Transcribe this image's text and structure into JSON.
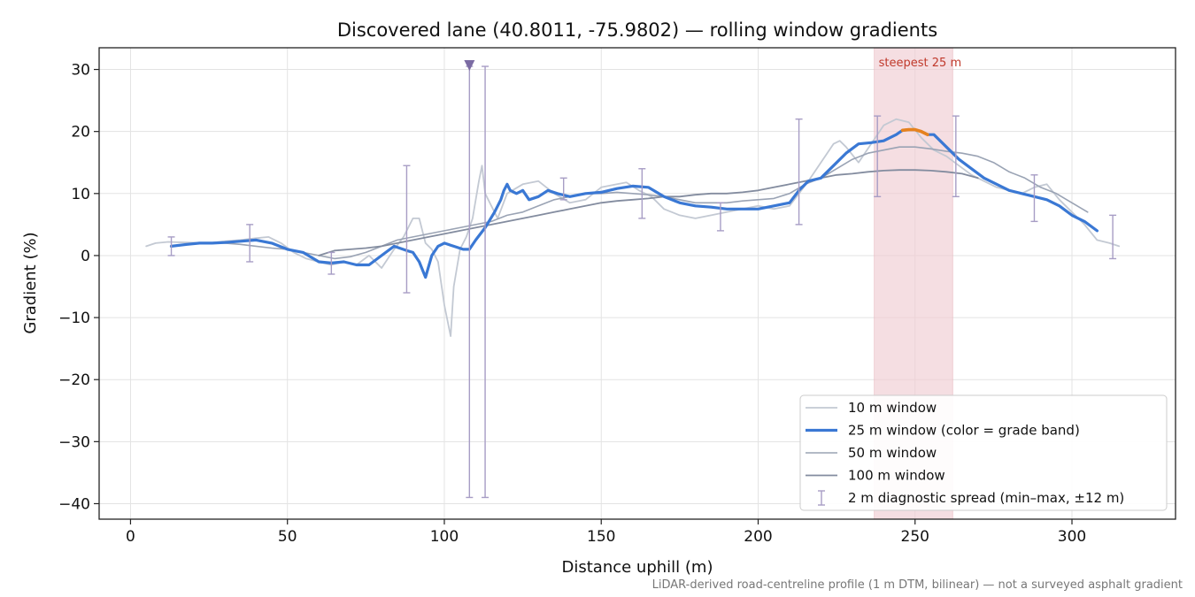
{
  "chart_data": {
    "type": "line",
    "title": "Discovered lane (40.8011, -75.9802) — rolling window gradients",
    "xlabel": "Distance uphill (m)",
    "ylabel": "Gradient (%)",
    "xlim": [
      -10,
      333
    ],
    "ylim": [
      -42.5,
      33.5
    ],
    "xticks": [
      0,
      50,
      100,
      150,
      200,
      250,
      300
    ],
    "yticks": [
      30,
      20,
      10,
      0,
      -10,
      -20,
      -30,
      -40
    ],
    "grid": true,
    "legend_position": "lower-right",
    "footnote": "LiDAR-derived road-centreline profile (1 m DTM, bilinear) — not a surveyed asphalt gradient",
    "highlight": {
      "label": "steepest 25 m",
      "x_range": [
        237,
        262
      ],
      "color": "#f1cdd3"
    },
    "peak_marker": {
      "x": 108,
      "y": 30.5,
      "color": "#7b6ba3"
    },
    "series": [
      {
        "name": "10 m window",
        "color": "#c3c9d3",
        "x": [
          5,
          8,
          12,
          18,
          25,
          30,
          35,
          40,
          44,
          48,
          52,
          56,
          60,
          64,
          68,
          72,
          76,
          80,
          84,
          87,
          90,
          92,
          94,
          96,
          98,
          100,
          102,
          103,
          105,
          107,
          109,
          111,
          112,
          113,
          115,
          117,
          120,
          125,
          130,
          135,
          140,
          145,
          150,
          155,
          158,
          162,
          166,
          170,
          175,
          180,
          185,
          190,
          195,
          200,
          205,
          210,
          213,
          216,
          220,
          224,
          226,
          228,
          232,
          236,
          240,
          244,
          248,
          252,
          256,
          260,
          264,
          268,
          272,
          276,
          280,
          284,
          288,
          292,
          296,
          300,
          304,
          308,
          312,
          315
        ],
        "values": [
          1.5,
          2.0,
          2.2,
          2.1,
          2.0,
          2.3,
          2.5,
          2.8,
          3.0,
          2.0,
          0.5,
          -0.5,
          -1.0,
          -1.5,
          -1.0,
          -1.5,
          0.0,
          -2.0,
          1.0,
          3.0,
          6.0,
          6.0,
          2.0,
          1.0,
          -1.0,
          -8.0,
          -13.0,
          -5.0,
          1.0,
          3.0,
          6.0,
          12.0,
          14.5,
          10.0,
          8.0,
          6.0,
          10.0,
          11.5,
          12.0,
          10.0,
          8.5,
          9.0,
          11.0,
          11.5,
          11.8,
          10.5,
          9.5,
          7.5,
          6.5,
          6.0,
          6.5,
          7.0,
          7.5,
          8.0,
          7.5,
          8.0,
          10.0,
          12.0,
          15.0,
          18.0,
          18.5,
          17.5,
          15.0,
          18.0,
          21.0,
          22.0,
          21.5,
          19.0,
          17.0,
          16.0,
          14.5,
          13.0,
          12.0,
          11.0,
          10.5,
          10.0,
          11.0,
          11.5,
          9.0,
          7.0,
          5.0,
          2.5,
          2.0,
          1.5
        ]
      },
      {
        "name": "25 m window (color = grade band)",
        "color": "#3a78d4",
        "highlight_color": "#e6821e",
        "highlight_x_range": [
          246,
          254
        ],
        "x": [
          13,
          18,
          22,
          26,
          30,
          35,
          40,
          45,
          50,
          55,
          60,
          64,
          68,
          72,
          76,
          80,
          84,
          88,
          90,
          92,
          94,
          96,
          98,
          100,
          103,
          106,
          108,
          110,
          113,
          116,
          118,
          119,
          120,
          121,
          123,
          125,
          127,
          130,
          133,
          136,
          140,
          145,
          150,
          155,
          160,
          165,
          170,
          175,
          180,
          185,
          190,
          195,
          200,
          205,
          210,
          213,
          216,
          220,
          224,
          228,
          232,
          236,
          240,
          244,
          246,
          248,
          250,
          252,
          254,
          256,
          260,
          264,
          268,
          272,
          276,
          280,
          284,
          288,
          292,
          296,
          300,
          304,
          308
        ],
        "values": [
          1.5,
          1.8,
          2.0,
          2.0,
          2.1,
          2.3,
          2.5,
          2.0,
          1.0,
          0.5,
          -1.0,
          -1.2,
          -1.0,
          -1.5,
          -1.5,
          0.0,
          1.5,
          0.8,
          0.5,
          -1.0,
          -3.5,
          0.0,
          1.5,
          2.0,
          1.5,
          1.0,
          1.0,
          2.5,
          4.5,
          7.0,
          9.0,
          10.5,
          11.5,
          10.5,
          10.0,
          10.5,
          9.0,
          9.5,
          10.5,
          10.0,
          9.5,
          10.0,
          10.2,
          10.8,
          11.2,
          11.0,
          9.5,
          8.5,
          8.0,
          7.8,
          7.5,
          7.5,
          7.5,
          8.0,
          8.5,
          10.5,
          12.0,
          12.5,
          14.5,
          16.5,
          18.0,
          18.2,
          18.5,
          19.5,
          20.2,
          20.3,
          20.3,
          20.0,
          19.5,
          19.5,
          17.5,
          15.5,
          14.0,
          12.5,
          11.5,
          10.5,
          10.0,
          9.5,
          9.0,
          8.0,
          6.5,
          5.5,
          4.0
        ]
      },
      {
        "name": "50 m window",
        "color": "#9aa3b4",
        "x": [
          13,
          18,
          25,
          30,
          35,
          40,
          45,
          50,
          55,
          60,
          65,
          70,
          75,
          80,
          85,
          90,
          95,
          100,
          105,
          110,
          115,
          120,
          125,
          130,
          135,
          140,
          145,
          150,
          155,
          160,
          165,
          170,
          175,
          180,
          185,
          190,
          195,
          200,
          205,
          210,
          215,
          220,
          225,
          230,
          235,
          240,
          245,
          250,
          255,
          260,
          265,
          270,
          275,
          280,
          285,
          290,
          295,
          300,
          305
        ],
        "values": [
          1.5,
          1.8,
          2.0,
          2.0,
          1.8,
          1.5,
          1.2,
          1.0,
          0.5,
          0.0,
          -0.5,
          -0.2,
          0.5,
          1.5,
          2.5,
          3.0,
          3.5,
          4.0,
          4.5,
          5.0,
          5.5,
          6.5,
          7.0,
          8.0,
          9.0,
          9.5,
          10.0,
          10.0,
          10.2,
          10.0,
          9.8,
          9.5,
          9.0,
          8.5,
          8.5,
          8.5,
          8.8,
          9.0,
          9.2,
          10.0,
          11.5,
          12.5,
          14.0,
          15.5,
          16.5,
          17.0,
          17.5,
          17.5,
          17.2,
          16.8,
          16.5,
          16.0,
          15.0,
          13.5,
          12.5,
          11.0,
          10.0,
          8.5,
          7.0
        ]
      },
      {
        "name": "100 m window",
        "color": "#838c9f",
        "x": [
          60,
          65,
          70,
          75,
          80,
          85,
          90,
          95,
          100,
          105,
          110,
          115,
          120,
          125,
          130,
          135,
          140,
          145,
          150,
          155,
          160,
          165,
          170,
          175,
          180,
          185,
          190,
          195,
          200,
          205,
          210,
          215,
          220,
          225,
          230,
          235,
          240,
          245,
          250,
          255,
          260,
          265,
          270
        ],
        "values": [
          0.0,
          0.8,
          1.0,
          1.2,
          1.5,
          2.0,
          2.5,
          3.0,
          3.5,
          4.0,
          4.5,
          5.0,
          5.5,
          6.0,
          6.5,
          7.0,
          7.5,
          8.0,
          8.5,
          8.8,
          9.0,
          9.2,
          9.5,
          9.5,
          9.8,
          10.0,
          10.0,
          10.2,
          10.5,
          11.0,
          11.5,
          12.0,
          12.5,
          13.0,
          13.2,
          13.5,
          13.7,
          13.8,
          13.8,
          13.7,
          13.5,
          13.2,
          12.5
        ]
      }
    ],
    "error_bars": {
      "name": "2 m diagnostic spread (min–max, ±12 m)",
      "color": "#a79dc5",
      "points": [
        {
          "x": 13,
          "min": 0.0,
          "max": 3.0
        },
        {
          "x": 38,
          "min": -1.0,
          "max": 5.0
        },
        {
          "x": 64,
          "min": -3.0,
          "max": 0.5
        },
        {
          "x": 88,
          "min": -6.0,
          "max": 14.5
        },
        {
          "x": 108,
          "min": -39.0,
          "max": 30.5
        },
        {
          "x": 113,
          "min": -39.0,
          "max": 30.5
        },
        {
          "x": 138,
          "min": 9.0,
          "max": 12.5
        },
        {
          "x": 163,
          "min": 6.0,
          "max": 14.0
        },
        {
          "x": 188,
          "min": 4.0,
          "max": 8.5
        },
        {
          "x": 213,
          "min": 5.0,
          "max": 22.0
        },
        {
          "x": 238,
          "min": 9.5,
          "max": 22.5
        },
        {
          "x": 263,
          "min": 9.5,
          "max": 22.5
        },
        {
          "x": 288,
          "min": 5.5,
          "max": 13.0
        },
        {
          "x": 313,
          "min": -0.5,
          "max": 6.5
        }
      ]
    }
  }
}
